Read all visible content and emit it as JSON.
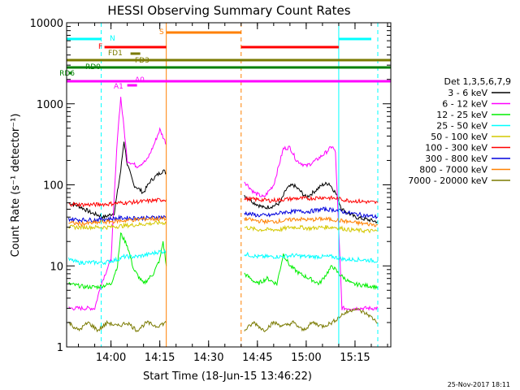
{
  "chart_data": {
    "type": "line",
    "title": "HESSI Observing Summary Count Rates",
    "xlabel": "Start Time (18-Jun-15 13:46:22)",
    "ylabel": "Count Rate (s⁻¹ detector⁻¹)",
    "yscale": "log",
    "ylim": [
      1,
      10000
    ],
    "xlim": [
      "13:46:22",
      "15:26:00"
    ],
    "x_ticks": [
      "14:00",
      "14:15",
      "14:30",
      "14:45",
      "15:00",
      "15:15"
    ],
    "y_ticks": [
      "1",
      "10",
      "100",
      "1000",
      "10000"
    ],
    "footer_date": "25-Nov-2017 18:11",
    "legend": {
      "title": "Det 1,3,5,6,7,9",
      "placement": "right",
      "entries": [
        {
          "label": "3 - 6 keV",
          "color": "#000000"
        },
        {
          "label": "6 - 12 keV",
          "color": "#ff00ff"
        },
        {
          "label": "12 - 25 keV",
          "color": "#00ee00"
        },
        {
          "label": "25 - 50 keV",
          "color": "#00ffff"
        },
        {
          "label": "50 - 100 keV",
          "color": "#d4c800"
        },
        {
          "label": "100 - 300 keV",
          "color": "#ff0000"
        },
        {
          "label": "300 - 800 keV",
          "color": "#0000dd"
        },
        {
          "label": "800 - 7000 keV",
          "color": "#ff8000"
        },
        {
          "label": "7000 - 20000 keV",
          "color": "#7a7a00"
        }
      ]
    },
    "flag_bars": [
      {
        "label": "N",
        "color": "#00ffff",
        "segments": [
          [
            "13:46",
            "13:57"
          ],
          [
            "15:10",
            "15:20"
          ]
        ]
      },
      {
        "label": "S",
        "color": "#ff8000",
        "segments": [
          [
            "14:17",
            "14:40"
          ]
        ]
      },
      {
        "label": "F",
        "color": "#ff0000",
        "segments": [
          [
            "13:58",
            "14:17"
          ],
          [
            "14:40",
            "15:10"
          ]
        ]
      },
      {
        "label": "FD1",
        "color": "#7a7a00",
        "segments": [
          [
            "14:06",
            "14:09"
          ]
        ]
      },
      {
        "label": "FD3",
        "color": "#7a7a00",
        "segments": [
          [
            "13:46",
            "15:26"
          ]
        ]
      },
      {
        "label": "RD0",
        "color": "#008000",
        "segments": [
          [
            "13:46",
            "15:26"
          ]
        ]
      },
      {
        "label": "RD6",
        "color": "#008000",
        "segments": [
          [
            "13:47",
            "13:48"
          ]
        ]
      },
      {
        "label": "A0",
        "color": "#ff00ff",
        "segments": [
          [
            "14:05",
            "14:08"
          ]
        ]
      },
      {
        "label": "A1",
        "color": "#ff00ff",
        "segments": [
          [
            "13:46",
            "15:26"
          ]
        ]
      }
    ],
    "vertical_lines": [
      {
        "time": "13:57",
        "color": "#00ffff",
        "style": "dashed"
      },
      {
        "time": "14:17",
        "color": "#ff8000",
        "style": "solid"
      },
      {
        "time": "14:40",
        "color": "#ff8000",
        "style": "dashed"
      },
      {
        "time": "15:10",
        "color": "#00ffff",
        "style": "solid"
      },
      {
        "time": "15:22",
        "color": "#00ffff",
        "style": "dashed"
      }
    ],
    "gap": [
      "14:17",
      "14:40"
    ],
    "series": [
      {
        "name": "3 - 6 keV",
        "color": "#000000",
        "segments": [
          [
            [
              "13:47",
              60
            ],
            [
              "13:50",
              55
            ],
            [
              "13:54",
              45
            ],
            [
              "13:58",
              40
            ],
            [
              "14:01",
              45
            ],
            [
              "14:03",
              150
            ],
            [
              "14:04",
              350
            ],
            [
              "14:05",
              180
            ],
            [
              "14:07",
              100
            ],
            [
              "14:10",
              80
            ],
            [
              "14:12",
              110
            ],
            [
              "14:14",
              130
            ],
            [
              "14:16",
              150
            ],
            [
              "14:17",
              140
            ]
          ],
          [
            [
              "14:41",
              75
            ],
            [
              "14:44",
              60
            ],
            [
              "14:47",
              52
            ],
            [
              "14:50",
              55
            ],
            [
              "14:52",
              60
            ],
            [
              "14:54",
              90
            ],
            [
              "14:56",
              100
            ],
            [
              "14:58",
              85
            ],
            [
              "15:00",
              70
            ],
            [
              "15:02",
              80
            ],
            [
              "15:05",
              100
            ],
            [
              "15:07",
              105
            ],
            [
              "15:09",
              80
            ],
            [
              "15:11",
              50
            ],
            [
              "15:15",
              40
            ],
            [
              "15:22",
              35
            ]
          ]
        ]
      },
      {
        "name": "6 - 12 keV",
        "color": "#ff00ff",
        "segments": [
          [
            [
              "13:47",
              3
            ],
            [
              "13:52",
              3
            ],
            [
              "13:55",
              3
            ],
            [
              "13:57",
              6
            ],
            [
              "14:00",
              12
            ],
            [
              "14:02",
              400
            ],
            [
              "14:03",
              1200
            ],
            [
              "14:04",
              500
            ],
            [
              "14:05",
              200
            ],
            [
              "14:08",
              170
            ],
            [
              "14:11",
              200
            ],
            [
              "14:13",
              300
            ],
            [
              "14:15",
              480
            ],
            [
              "14:17",
              320
            ]
          ],
          [
            [
              "14:41",
              110
            ],
            [
              "14:44",
              80
            ],
            [
              "14:47",
              70
            ],
            [
              "14:50",
              100
            ],
            [
              "14:53",
              280
            ],
            [
              "14:55",
              290
            ],
            [
              "14:57",
              200
            ],
            [
              "15:00",
              170
            ],
            [
              "15:03",
              200
            ],
            [
              "15:06",
              250
            ],
            [
              "15:08",
              300
            ],
            [
              "15:09",
              250
            ],
            [
              "15:11",
              3
            ],
            [
              "15:22",
              3
            ]
          ]
        ]
      },
      {
        "name": "12 - 25 keV",
        "color": "#00ee00",
        "segments": [
          [
            [
              "13:47",
              6
            ],
            [
              "13:52",
              5.5
            ],
            [
              "13:56",
              5.5
            ],
            [
              "14:00",
              6
            ],
            [
              "14:02",
              10
            ],
            [
              "14:03",
              25
            ],
            [
              "14:05",
              18
            ],
            [
              "14:07",
              9
            ],
            [
              "14:10",
              6
            ],
            [
              "14:13",
              8
            ],
            [
              "14:15",
              12
            ],
            [
              "14:16",
              20
            ],
            [
              "14:17",
              10
            ]
          ],
          [
            [
              "14:41",
              8
            ],
            [
              "14:45",
              6
            ],
            [
              "14:48",
              7
            ],
            [
              "14:51",
              6
            ],
            [
              "14:53",
              14
            ],
            [
              "14:55",
              10
            ],
            [
              "14:58",
              8
            ],
            [
              "15:01",
              7
            ],
            [
              "15:04",
              6
            ],
            [
              "15:08",
              10
            ],
            [
              "15:10",
              8
            ],
            [
              "15:14",
              6
            ],
            [
              "15:22",
              5.5
            ]
          ]
        ]
      },
      {
        "name": "25 - 50 keV",
        "color": "#00ffff",
        "segments": [
          [
            [
              "13:47",
              12
            ],
            [
              "13:50",
              11
            ],
            [
              "13:54",
              11
            ],
            [
              "13:58",
              11
            ],
            [
              "14:02",
              12
            ],
            [
              "14:04",
              13
            ],
            [
              "14:08",
              13
            ],
            [
              "14:12",
              14
            ],
            [
              "14:15",
              15
            ],
            [
              "14:17",
              15
            ]
          ],
          [
            [
              "14:41",
              14
            ],
            [
              "14:45",
              13
            ],
            [
              "14:48",
              13
            ],
            [
              "14:52",
              13
            ],
            [
              "14:56",
              13.5
            ],
            [
              "15:00",
              13
            ],
            [
              "15:04",
              13
            ],
            [
              "15:08",
              13
            ],
            [
              "15:12",
              12
            ],
            [
              "15:16",
              12
            ],
            [
              "15:22",
              11.5
            ]
          ]
        ]
      },
      {
        "name": "50 - 100 keV",
        "color": "#d4c800",
        "segments": [
          [
            [
              "13:47",
              30
            ],
            [
              "13:51",
              30
            ],
            [
              "13:55",
              30
            ],
            [
              "13:59",
              30
            ],
            [
              "14:03",
              31
            ],
            [
              "14:07",
              32
            ],
            [
              "14:11",
              33
            ],
            [
              "14:15",
              34
            ],
            [
              "14:17",
              34
            ]
          ],
          [
            [
              "14:41",
              30
            ],
            [
              "14:45",
              28
            ],
            [
              "14:49",
              28
            ],
            [
              "14:52",
              28
            ],
            [
              "14:55",
              30
            ],
            [
              "14:58",
              30
            ],
            [
              "15:01",
              29
            ],
            [
              "15:05",
              30
            ],
            [
              "15:09",
              30
            ],
            [
              "15:13",
              28
            ],
            [
              "15:18",
              27
            ],
            [
              "15:22",
              27
            ]
          ]
        ]
      },
      {
        "name": "100 - 300 keV",
        "color": "#ff0000",
        "segments": [
          [
            [
              "13:47",
              58
            ],
            [
              "13:51",
              57
            ],
            [
              "13:55",
              57
            ],
            [
              "13:59",
              58
            ],
            [
              "14:03",
              60
            ],
            [
              "14:07",
              61
            ],
            [
              "14:11",
              63
            ],
            [
              "14:15",
              65
            ],
            [
              "14:17",
              66
            ]
          ],
          [
            [
              "14:41",
              67
            ],
            [
              "14:45",
              66
            ],
            [
              "14:49",
              64
            ],
            [
              "14:53",
              66
            ],
            [
              "14:57",
              68
            ],
            [
              "15:01",
              68
            ],
            [
              "15:05",
              70
            ],
            [
              "15:09",
              68
            ],
            [
              "15:13",
              64
            ],
            [
              "15:18",
              62
            ],
            [
              "15:22",
              60
            ]
          ]
        ]
      },
      {
        "name": "300 - 800 keV",
        "color": "#0000dd",
        "segments": [
          [
            [
              "13:47",
              38
            ],
            [
              "13:51",
              37
            ],
            [
              "13:55",
              37
            ],
            [
              "13:59",
              38
            ],
            [
              "14:03",
              39
            ],
            [
              "14:07",
              39
            ],
            [
              "14:11",
              39
            ],
            [
              "14:15",
              40
            ],
            [
              "14:17",
              40
            ]
          ],
          [
            [
              "14:41",
              45
            ],
            [
              "14:45",
              42
            ],
            [
              "14:49",
              42
            ],
            [
              "14:53",
              46
            ],
            [
              "14:57",
              47
            ],
            [
              "15:01",
              47
            ],
            [
              "15:05",
              50
            ],
            [
              "15:09",
              49
            ],
            [
              "15:13",
              45
            ],
            [
              "15:18",
              42
            ],
            [
              "15:22",
              40
            ]
          ]
        ]
      },
      {
        "name": "800 - 7000 keV",
        "color": "#ff8000",
        "segments": [
          [
            [
              "13:47",
              34
            ],
            [
              "13:51",
              33
            ],
            [
              "13:55",
              34
            ],
            [
              "13:59",
              35
            ],
            [
              "14:03",
              36
            ],
            [
              "14:07",
              37
            ],
            [
              "14:11",
              38
            ],
            [
              "14:15",
              38
            ],
            [
              "14:17",
              38
            ]
          ],
          [
            [
              "14:41",
              38
            ],
            [
              "14:45",
              36
            ],
            [
              "14:49",
              35
            ],
            [
              "14:53",
              36
            ],
            [
              "14:57",
              38
            ],
            [
              "15:01",
              37
            ],
            [
              "15:05",
              38
            ],
            [
              "15:09",
              37
            ],
            [
              "15:13",
              35
            ],
            [
              "15:18",
              33
            ],
            [
              "15:22",
              32
            ]
          ]
        ]
      },
      {
        "name": "7000 - 20000 keV",
        "color": "#7a7a00",
        "segments": [
          [
            [
              "13:47",
              2
            ],
            [
              "13:50",
              1.6
            ],
            [
              "13:53",
              2
            ],
            [
              "13:56",
              1.6
            ],
            [
              "13:59",
              2
            ],
            [
              "14:02",
              1.8
            ],
            [
              "14:05",
              2
            ],
            [
              "14:08",
              1.6
            ],
            [
              "14:11",
              2
            ],
            [
              "14:14",
              1.8
            ],
            [
              "14:17",
              2
            ]
          ],
          [
            [
              "14:41",
              1.6
            ],
            [
              "14:44",
              2
            ],
            [
              "14:47",
              1.6
            ],
            [
              "14:50",
              2
            ],
            [
              "14:53",
              1.8
            ],
            [
              "14:56",
              2
            ],
            [
              "14:59",
              1.6
            ],
            [
              "15:02",
              2
            ],
            [
              "15:05",
              1.8
            ],
            [
              "15:08",
              2
            ],
            [
              "15:11",
              2.5
            ],
            [
              "15:15",
              3
            ],
            [
              "15:19",
              2.5
            ],
            [
              "15:22",
              2
            ]
          ]
        ]
      }
    ]
  }
}
